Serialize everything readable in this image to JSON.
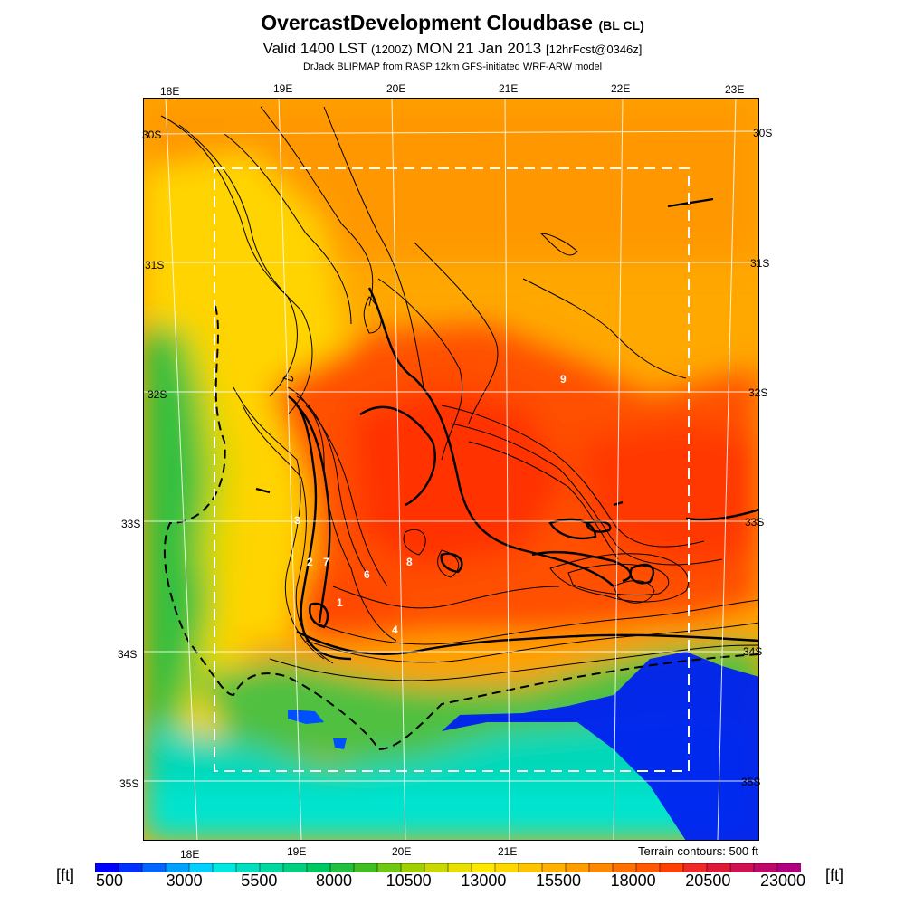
{
  "title": {
    "main": "OvercastDevelopment Cloudbase",
    "tag": "(BL CL)",
    "valid_prefix": "Valid 1400 LST",
    "valid_utc": "(1200Z)",
    "valid_date": "MON 21 Jan 2013",
    "forecast": "[12hrFcst@0346z]",
    "subtitle": "DrJack BLIPMAP from RASP 12km GFS-initiated WRF-ARW model"
  },
  "lon_top": [
    "18E",
    "19E",
    "20E",
    "21E",
    "22E",
    "23E"
  ],
  "lon_bottom": [
    "18E",
    "19E",
    "20E",
    "21E"
  ],
  "lat_left": [
    "30S",
    "31S",
    "32S",
    "33S",
    "34S",
    "35S"
  ],
  "lat_right": [
    "30S",
    "31S",
    "32S",
    "33S",
    "34S",
    "35S"
  ],
  "site_labels": [
    "1",
    "2",
    "3",
    "4",
    "6",
    "7",
    "8",
    "9"
  ],
  "terrain_note": "Terrain contours: 500 ft",
  "legend": {
    "unit": "[ft]",
    "ticks": [
      "500",
      "3000",
      "5500",
      "8000",
      "10500",
      "13000",
      "15500",
      "18000",
      "20500",
      "23000"
    ],
    "colors": [
      "#0000ff",
      "#0030ff",
      "#0066ff",
      "#00a0ff",
      "#00d0ff",
      "#00e8e0",
      "#00e0c0",
      "#00d8a0",
      "#00d080",
      "#00c860",
      "#20c040",
      "#40c020",
      "#70c810",
      "#a0d000",
      "#c8d800",
      "#e8e000",
      "#ffe800",
      "#ffd800",
      "#ffc400",
      "#ffb000",
      "#ff9c00",
      "#ff8800",
      "#ff7000",
      "#ff5800",
      "#ff4000",
      "#f02828",
      "#e01838",
      "#d01050",
      "#c00868",
      "#b00080"
    ]
  }
}
